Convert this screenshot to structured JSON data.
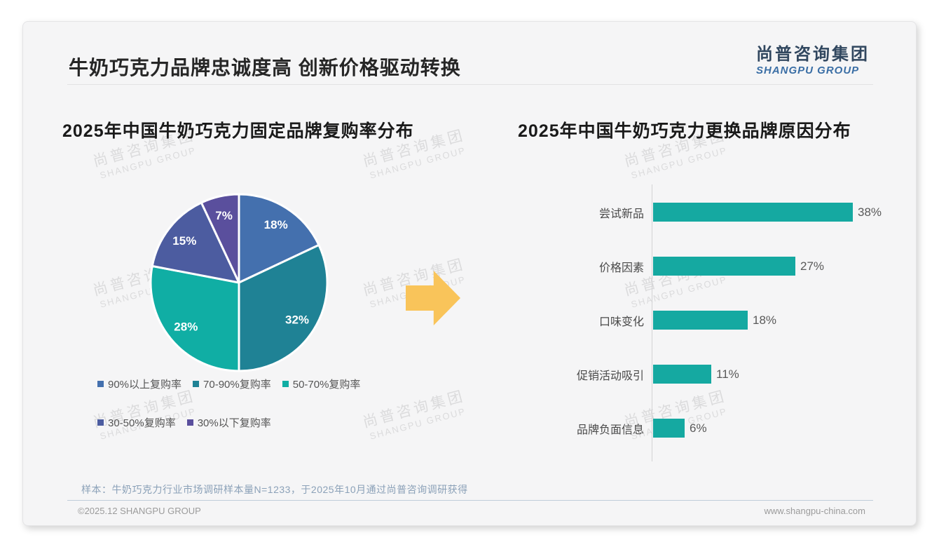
{
  "page": {
    "title": "牛奶巧克力品牌忠诚度高 创新价格驱动转换"
  },
  "logo": {
    "cn": "尚普咨询集团",
    "en": "SHANGPU GROUP"
  },
  "watermark": {
    "cn": "尚普咨询集团",
    "en": "SHANGPU GROUP"
  },
  "arrow": {
    "color": "#F9C45A",
    "direction": "right"
  },
  "chart_data": [
    {
      "type": "pie",
      "title": "2025年中国牛奶巧克力固定品牌复购率分布",
      "labels": [
        "90%以上复购率",
        "70-90%复购率",
        "50-70%复购率",
        "30-50%复购率",
        "30%以下复购率"
      ],
      "values": [
        18,
        32,
        28,
        15,
        7
      ],
      "unit": "%",
      "colors": [
        "#4470AE",
        "#1F8295",
        "#10AEA4",
        "#4C5CA0",
        "#5A4F9D"
      ],
      "start_angle_deg": 0,
      "direction": "clockwise",
      "legend_position": "bottom"
    },
    {
      "type": "bar",
      "title": "2025年中国牛奶巧克力更换品牌原因分布",
      "orientation": "horizontal",
      "categories": [
        "尝试新品",
        "价格因素",
        "口味变化",
        "促销活动吸引",
        "品牌负面信息"
      ],
      "values": [
        38,
        27,
        18,
        11,
        6
      ],
      "unit": "%",
      "bar_color": "#15A9A1",
      "xlim": [
        0,
        40
      ],
      "grid": false
    }
  ],
  "footer": {
    "note": "样本：牛奶巧克力行业市场调研样本量N=1233，于2025年10月通过尚普咨询调研获得",
    "copyright": "©2025.12 SHANGPU GROUP",
    "website": "www.shangpu-china.com"
  }
}
